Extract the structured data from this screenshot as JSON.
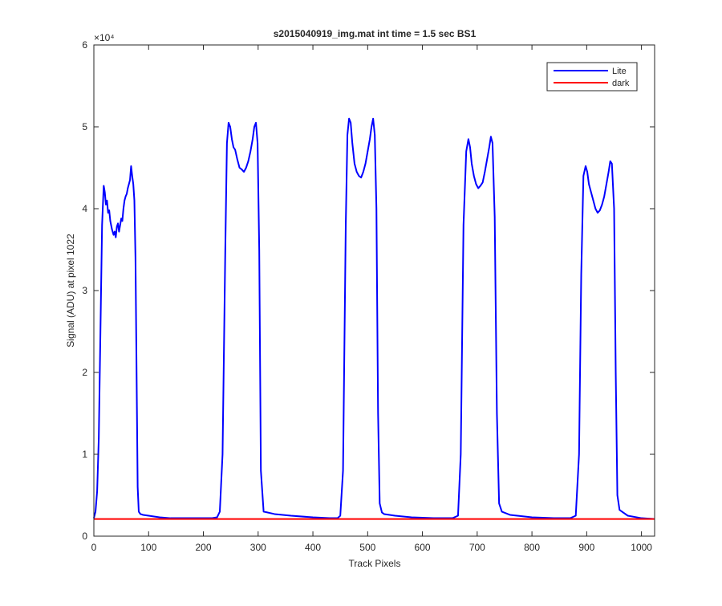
{
  "chart_data": {
    "type": "line",
    "title": "s2015040919_img.mat int time = 1.5 sec   BS1",
    "xlabel": "Track Pixels",
    "ylabel": "Signal (ADU) at pixel 1022",
    "y_exponent_label": "×10⁴",
    "xlim": [
      0,
      1024
    ],
    "ylim": [
      0,
      6
    ],
    "y_scale_factor": 10000,
    "x_ticks": [
      0,
      100,
      200,
      300,
      400,
      500,
      600,
      700,
      800,
      900,
      1000
    ],
    "y_ticks": [
      0,
      1,
      2,
      3,
      4,
      5,
      6
    ],
    "x_tick_labels": [
      "0",
      "100",
      "200",
      "300",
      "400",
      "500",
      "600",
      "700",
      "800",
      "900",
      "1000"
    ],
    "y_tick_labels": [
      "0",
      "1",
      "2",
      "3",
      "4",
      "5",
      "6"
    ],
    "grid": false,
    "legend_position": "top-right",
    "series": [
      {
        "name": "Lite",
        "color": "#0000ff",
        "x": [
          0,
          3,
          6,
          9,
          12,
          15,
          18,
          20,
          22,
          24,
          26,
          28,
          30,
          33,
          36,
          38,
          40,
          42,
          44,
          46,
          48,
          50,
          52,
          54,
          56,
          58,
          60,
          62,
          64,
          66,
          68,
          70,
          72,
          74,
          76,
          78,
          80,
          82,
          85,
          90,
          100,
          120,
          140,
          160,
          180,
          200,
          215,
          225,
          230,
          235,
          240,
          243,
          246,
          249,
          252,
          255,
          258,
          262,
          266,
          270,
          274,
          278,
          282,
          286,
          290,
          293,
          296,
          299,
          302,
          305,
          310,
          330,
          360,
          400,
          430,
          445,
          450,
          455,
          460,
          463,
          466,
          469,
          472,
          476,
          480,
          484,
          488,
          492,
          496,
          500,
          504,
          507,
          510,
          513,
          516,
          519,
          522,
          526,
          530,
          550,
          580,
          620,
          655,
          665,
          670,
          675,
          680,
          684,
          687,
          690,
          694,
          698,
          702,
          706,
          710,
          714,
          718,
          722,
          725,
          728,
          732,
          736,
          740,
          745,
          760,
          800,
          840,
          870,
          880,
          886,
          890,
          894,
          898,
          901,
          904,
          908,
          912,
          916,
          920,
          924,
          928,
          932,
          936,
          940,
          943,
          946,
          950,
          953,
          956,
          960,
          975,
          1000,
          1024
        ],
        "y": [
          0.22,
          0.3,
          0.55,
          1.2,
          2.5,
          3.8,
          4.28,
          4.2,
          4.05,
          4.1,
          3.95,
          3.98,
          3.85,
          3.75,
          3.68,
          3.72,
          3.65,
          3.78,
          3.82,
          3.72,
          3.8,
          3.88,
          3.85,
          4.0,
          4.1,
          4.15,
          4.18,
          4.25,
          4.3,
          4.35,
          4.52,
          4.4,
          4.3,
          4.1,
          3.4,
          2.0,
          0.6,
          0.3,
          0.27,
          0.26,
          0.25,
          0.23,
          0.22,
          0.22,
          0.22,
          0.22,
          0.22,
          0.23,
          0.3,
          1.0,
          3.5,
          4.8,
          5.05,
          5.0,
          4.85,
          4.75,
          4.72,
          4.6,
          4.5,
          4.48,
          4.45,
          4.5,
          4.58,
          4.7,
          4.85,
          5.0,
          5.05,
          4.8,
          3.5,
          0.8,
          0.3,
          0.27,
          0.25,
          0.23,
          0.22,
          0.22,
          0.25,
          0.8,
          3.8,
          4.9,
          5.1,
          5.05,
          4.8,
          4.55,
          4.45,
          4.4,
          4.38,
          4.45,
          4.55,
          4.7,
          4.85,
          5.0,
          5.1,
          4.9,
          4.0,
          1.5,
          0.4,
          0.29,
          0.27,
          0.25,
          0.23,
          0.22,
          0.22,
          0.25,
          1.0,
          3.8,
          4.7,
          4.85,
          4.75,
          4.55,
          4.4,
          4.3,
          4.25,
          4.28,
          4.32,
          4.45,
          4.6,
          4.75,
          4.88,
          4.8,
          3.9,
          1.5,
          0.4,
          0.3,
          0.26,
          0.23,
          0.22,
          0.22,
          0.25,
          1.0,
          3.2,
          4.4,
          4.52,
          4.45,
          4.3,
          4.2,
          4.1,
          4.0,
          3.95,
          3.98,
          4.05,
          4.15,
          4.3,
          4.45,
          4.58,
          4.55,
          4.0,
          2.0,
          0.5,
          0.32,
          0.25,
          0.22,
          0.21
        ]
      },
      {
        "name": "dark",
        "color": "#ff0000",
        "x": [
          0,
          1024
        ],
        "y": [
          0.21,
          0.21
        ]
      }
    ]
  }
}
